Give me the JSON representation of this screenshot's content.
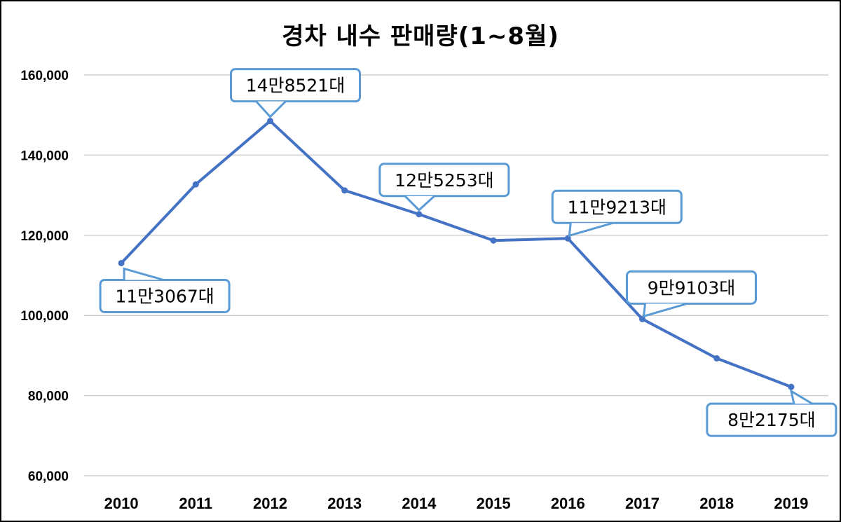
{
  "chart_data": {
    "type": "line",
    "title": "경차 내수 판매량(1~8월)",
    "xlabel": "",
    "ylabel": "",
    "categories": [
      "2010",
      "2011",
      "2012",
      "2013",
      "2014",
      "2015",
      "2016",
      "2017",
      "2018",
      "2019"
    ],
    "series": [
      {
        "name": "경차 내수 판매량",
        "color": "#4472C4",
        "values": [
          113067,
          132700,
          148521,
          131200,
          125253,
          118700,
          119213,
          99103,
          89300,
          82175
        ]
      }
    ],
    "ylim": [
      60000,
      160000
    ],
    "yticks": [
      60000,
      80000,
      100000,
      120000,
      140000,
      160000
    ],
    "ytick_labels": [
      "60,000",
      "80,000",
      "100,000",
      "120,000",
      "140,000",
      "160,000"
    ],
    "grid": true,
    "legend": null,
    "annotations": [
      {
        "index": 0,
        "text": "11만3067대",
        "position": "below"
      },
      {
        "index": 2,
        "text": "14만8521대",
        "position": "above"
      },
      {
        "index": 4,
        "text": "12만5253대",
        "position": "above"
      },
      {
        "index": 6,
        "text": "11만9213대",
        "position": "above-right"
      },
      {
        "index": 7,
        "text": "9만9103대",
        "position": "above-right"
      },
      {
        "index": 9,
        "text": "8만2175대",
        "position": "below"
      }
    ]
  },
  "colors": {
    "line": "#4472C4",
    "callout_border": "#5B9BD5",
    "grid": "#D0D0D0"
  }
}
